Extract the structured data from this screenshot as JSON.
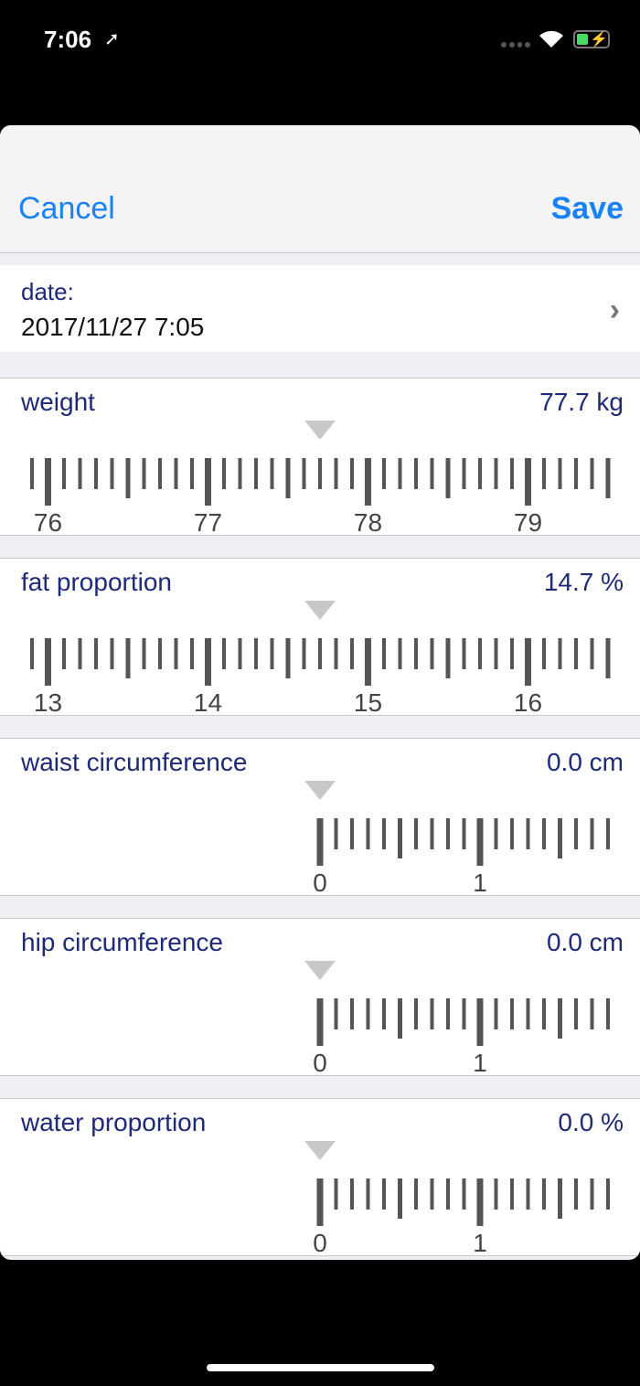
{
  "status": {
    "time": "7:06",
    "location_icon": "location-arrow-icon",
    "wifi_icon": "wifi-icon",
    "battery_icon": "battery-charging-icon"
  },
  "nav": {
    "cancel": "Cancel",
    "save": "Save"
  },
  "date": {
    "label": "date:",
    "value": "2017/11/27 7:05"
  },
  "colors": {
    "accent": "#1a82f7",
    "label": "#1e2a78",
    "tick": "#555555",
    "pointer": "#c8c8c8"
  },
  "rulers": [
    {
      "label": "weight",
      "value_text": "77.7 kg",
      "value": 77.7,
      "labels": [
        "76",
        "77",
        "78",
        "79"
      ]
    },
    {
      "label": "fat proportion",
      "value_text": "14.7 %",
      "value": 14.7,
      "labels": [
        "13",
        "14",
        "15",
        "16"
      ]
    },
    {
      "label": "waist circumference",
      "value_text": "0.0 cm",
      "value": 0,
      "labels": [
        "0",
        "1"
      ]
    },
    {
      "label": "hip circumference",
      "value_text": "0.0 cm",
      "value": 0,
      "labels": [
        "0",
        "1"
      ]
    },
    {
      "label": "water proportion",
      "value_text": "0.0 %",
      "value": 0,
      "labels": [
        "0",
        "1"
      ]
    }
  ]
}
